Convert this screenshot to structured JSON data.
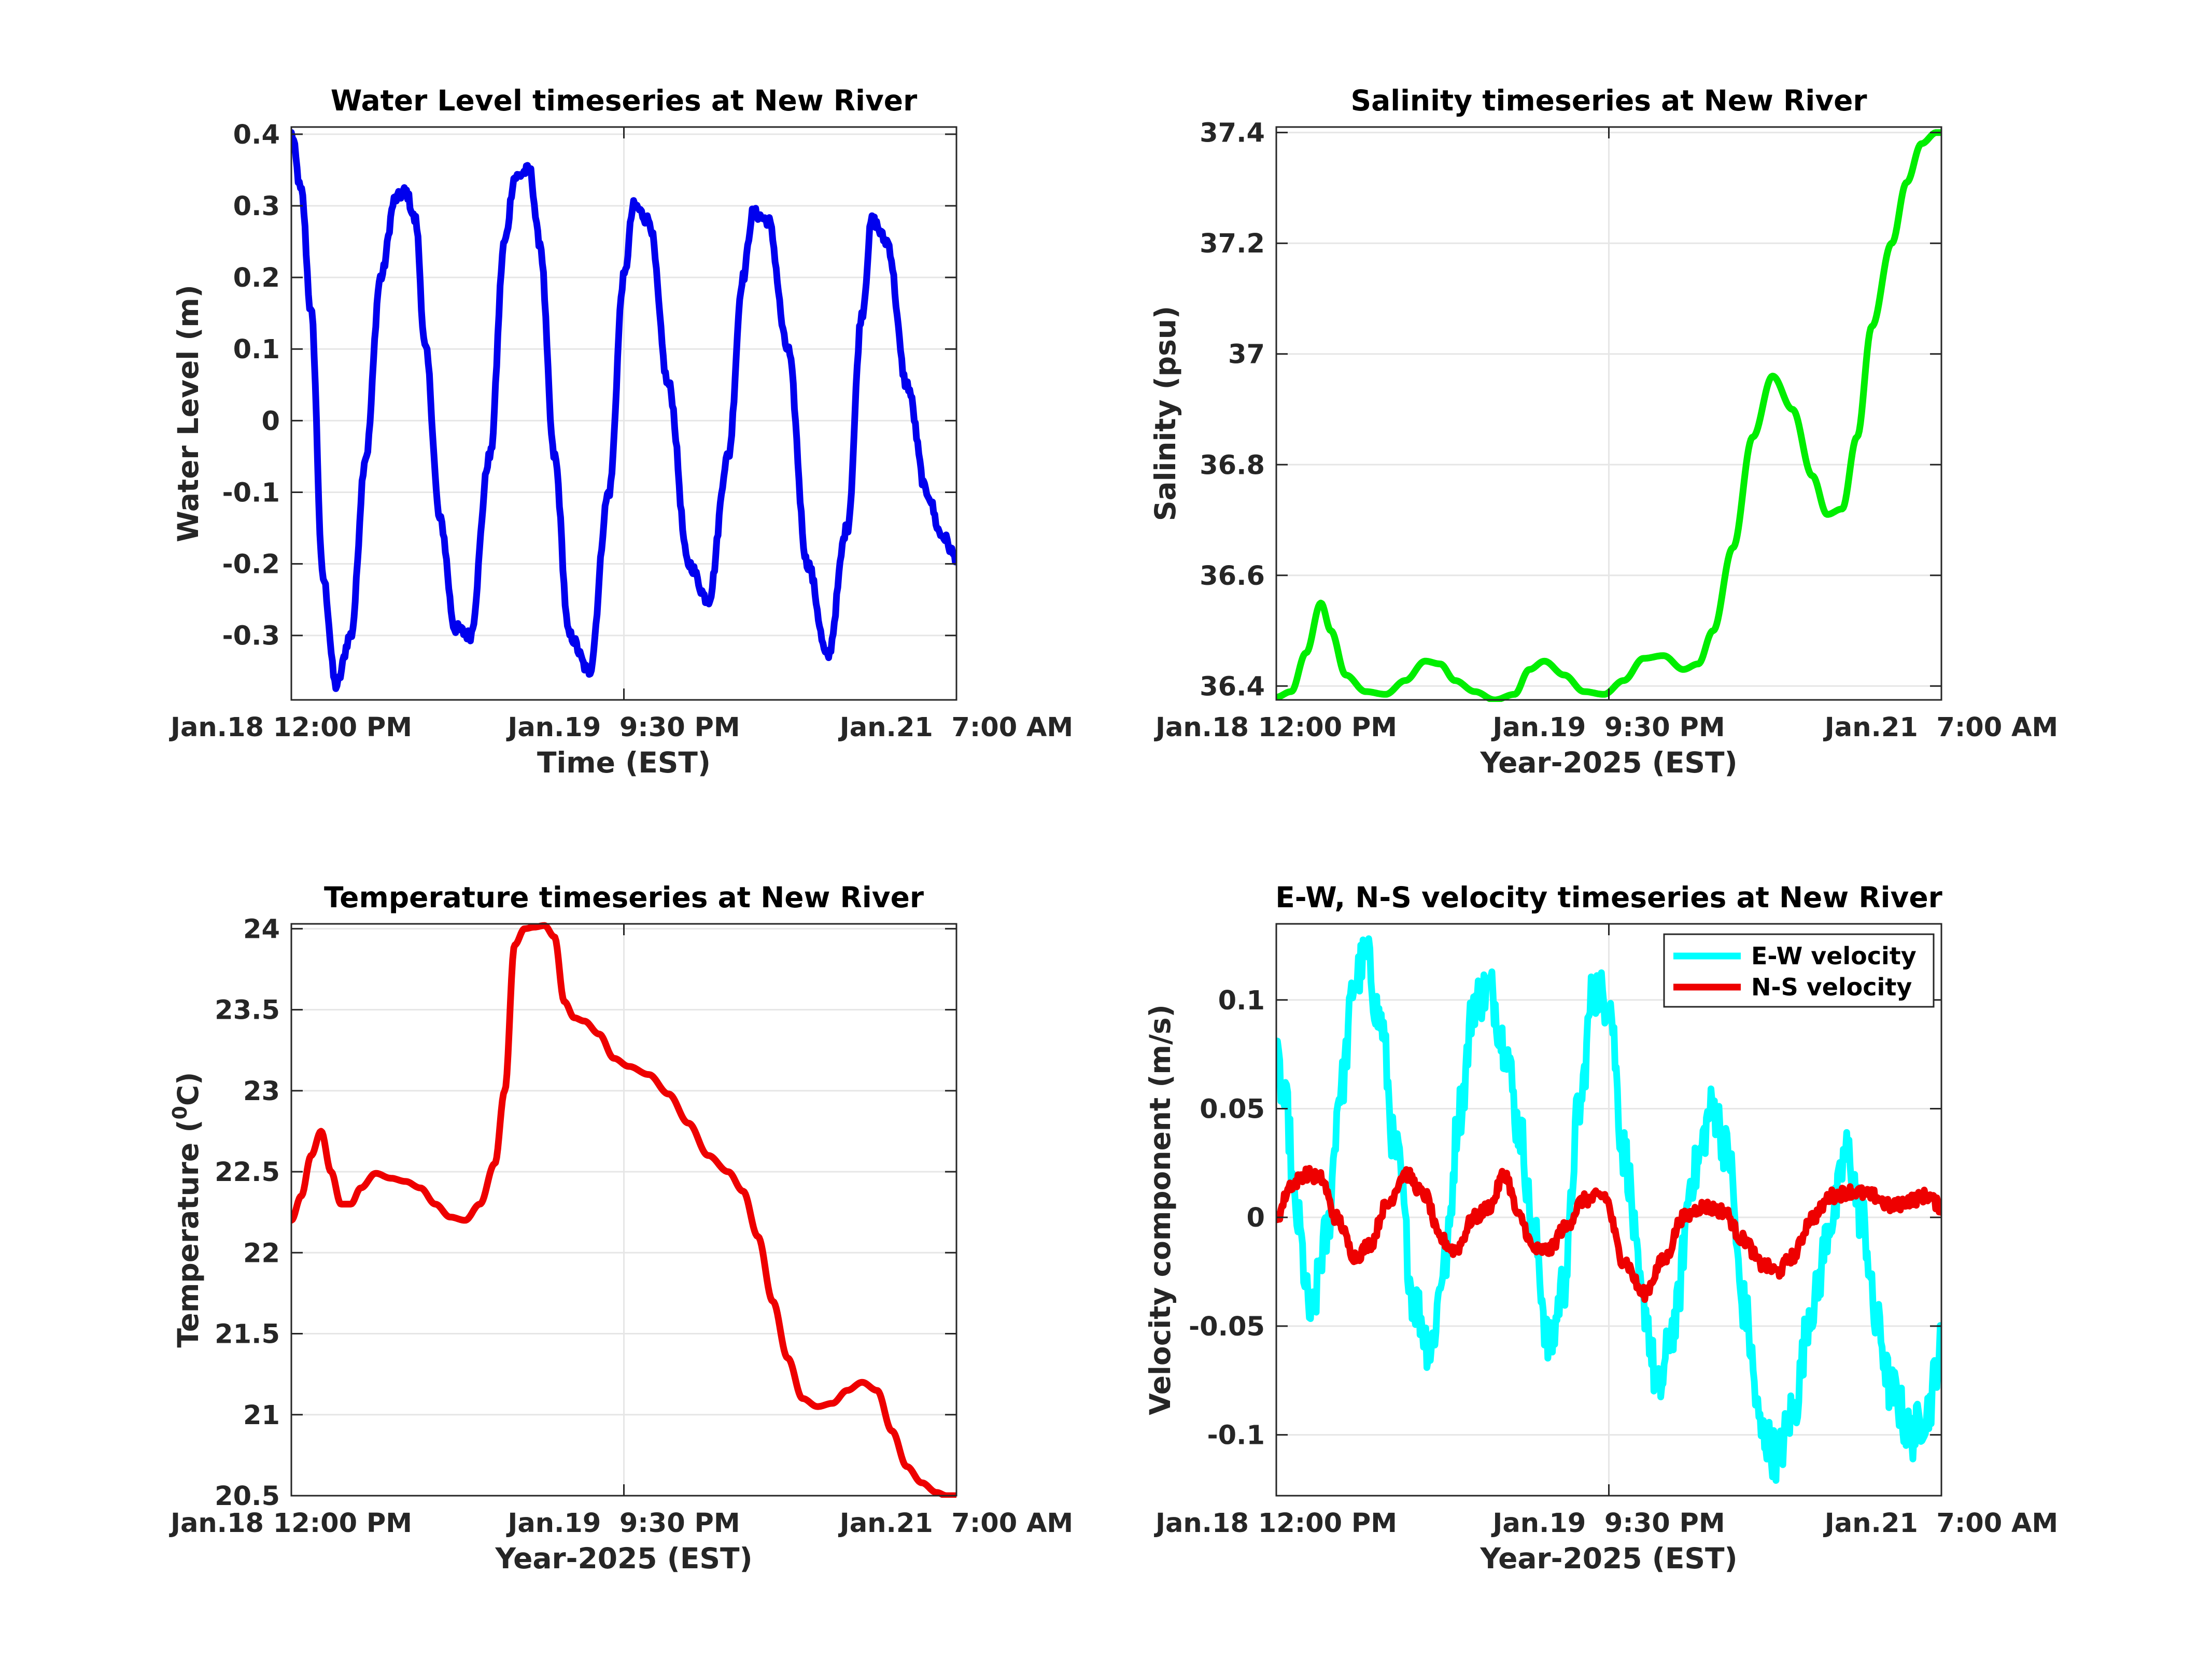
{
  "colors": {
    "water_level": "#0000ee",
    "salinity": "#00ee00",
    "temperature": "#ee0000",
    "ew_velocity": "#00ffff",
    "ns_velocity": "#ee0000",
    "grid": "#e6e6e6",
    "axis": "#262626"
  },
  "chart_data": [
    {
      "id": "water",
      "type": "line",
      "title": "Water Level timeseries at New River",
      "xlabel": "Time (EST)",
      "ylabel": "Water Level (m)",
      "x_tick_labels": [
        "Jan.18 12:00 PM",
        "Jan.19  9:30 PM",
        "Jan.21  7:00 AM"
      ],
      "xlim_hours": [
        0,
        67
      ],
      "ylim": [
        -0.39,
        0.41
      ],
      "yticks": [
        -0.3,
        -0.2,
        -0.1,
        0,
        0.1,
        0.2,
        0.3,
        0.4
      ],
      "ytick_labels": [
        "-0.3",
        "-0.2",
        "-0.1",
        "0",
        "0.1",
        "0.2",
        "0.3",
        "0.4"
      ],
      "series": [
        {
          "color_key": "water_level",
          "noise": 0.008,
          "x": [
            0,
            1,
            2,
            3.2,
            4.5,
            6,
            7.5,
            9,
            10.5,
            11.5,
            12.5,
            13.5,
            15,
            16.5,
            18,
            20,
            21.5,
            22.5,
            24,
            25,
            26.5,
            28,
            30,
            32,
            33.5,
            34.5,
            36,
            38,
            40,
            42,
            44,
            45.5,
            46.5,
            48,
            50,
            52,
            54,
            56,
            57.5,
            58.5,
            60,
            62,
            64,
            65.5,
            67
          ],
          "y": [
            0.4,
            0.32,
            0.15,
            -0.22,
            -0.37,
            -0.3,
            -0.05,
            0.2,
            0.31,
            0.32,
            0.28,
            0.1,
            -0.14,
            -0.29,
            -0.3,
            -0.05,
            0.25,
            0.34,
            0.35,
            0.25,
            -0.05,
            -0.3,
            -0.35,
            -0.1,
            0.2,
            0.3,
            0.28,
            0.05,
            -0.2,
            -0.25,
            -0.05,
            0.2,
            0.29,
            0.28,
            0.1,
            -0.2,
            -0.33,
            -0.15,
            0.15,
            0.28,
            0.25,
            0.05,
            -0.1,
            -0.16,
            -0.19
          ]
        }
      ]
    },
    {
      "id": "salinity",
      "type": "line",
      "title": "Salinity timeseries at New River",
      "xlabel": "Year-2025 (EST)",
      "ylabel": "Salinity (psu)",
      "x_tick_labels": [
        "Jan.18 12:00 PM",
        "Jan.19  9:30 PM",
        "Jan.21  7:00 AM"
      ],
      "xlim_hours": [
        0,
        67
      ],
      "ylim": [
        36.375,
        37.41
      ],
      "yticks": [
        36.4,
        36.6,
        36.8,
        37,
        37.2,
        37.4
      ],
      "ytick_labels": [
        "36.4",
        "36.6",
        "36.8",
        "37",
        "37.2",
        "37.4"
      ],
      "series": [
        {
          "color_key": "salinity",
          "noise": 0,
          "x": [
            0,
            1.5,
            3,
            4.5,
            5.5,
            7,
            9,
            11,
            13,
            15,
            16.5,
            18,
            20,
            22,
            24,
            25.5,
            27,
            29,
            31,
            33,
            35,
            37,
            39,
            41,
            42.5,
            44,
            46,
            48,
            50,
            52,
            54,
            55.5,
            57,
            58.5,
            60,
            62,
            63.5,
            65,
            66.5
          ],
          "y": [
            36.38,
            36.39,
            36.46,
            36.55,
            36.5,
            36.42,
            36.39,
            36.385,
            36.41,
            36.445,
            36.44,
            36.41,
            36.39,
            36.375,
            36.385,
            36.43,
            36.445,
            36.42,
            36.39,
            36.385,
            36.41,
            36.45,
            36.455,
            36.43,
            36.44,
            36.5,
            36.65,
            36.85,
            36.96,
            36.9,
            36.78,
            36.71,
            36.72,
            36.85,
            37.05,
            37.2,
            37.31,
            37.38,
            37.4
          ]
        }
      ]
    },
    {
      "id": "temperature",
      "type": "line",
      "title": "Temperature timeseries at New River",
      "xlabel": "Year-2025 (EST)",
      "ylabel": "Temperature (",
      "ylabel_superscript": "0",
      "ylabel_suffix": "C)",
      "x_tick_labels": [
        "Jan.18 12:00 PM",
        "Jan.19  9:30 PM",
        "Jan.21  7:00 AM"
      ],
      "xlim_hours": [
        0,
        67
      ],
      "ylim": [
        20.5,
        24.03
      ],
      "yticks": [
        20.5,
        21,
        21.5,
        22,
        22.5,
        23,
        23.5,
        24
      ],
      "ytick_labels": [
        "20.5",
        "21",
        "21.5",
        "22",
        "22.5",
        "23",
        "23.5",
        "24"
      ],
      "series": [
        {
          "color_key": "temperature",
          "noise": 0,
          "x": [
            0,
            1,
            2,
            3,
            4,
            5,
            6,
            7,
            8.5,
            10,
            11.5,
            13,
            14.5,
            16,
            17.5,
            19,
            20.5,
            21.5,
            22.5,
            23.5,
            24.5,
            25.5,
            26.5,
            27.5,
            28.5,
            29.5,
            31,
            32.5,
            34,
            36,
            38,
            40,
            42,
            44,
            45.5,
            47,
            48.5,
            50,
            51.5,
            53,
            54.5,
            56,
            57.5,
            59,
            60.5,
            62,
            63.5,
            65,
            66,
            67
          ],
          "y": [
            22.2,
            22.35,
            22.6,
            22.75,
            22.5,
            22.3,
            22.3,
            22.4,
            22.49,
            22.46,
            22.44,
            22.4,
            22.3,
            22.22,
            22.2,
            22.3,
            22.55,
            23.0,
            23.9,
            24.0,
            24.01,
            24.02,
            23.95,
            23.55,
            23.45,
            23.43,
            23.35,
            23.2,
            23.15,
            23.1,
            22.98,
            22.8,
            22.6,
            22.5,
            22.38,
            22.1,
            21.7,
            21.35,
            21.1,
            21.05,
            21.07,
            21.15,
            21.2,
            21.15,
            20.9,
            20.68,
            20.58,
            20.52,
            20.5,
            20.5
          ]
        }
      ]
    },
    {
      "id": "velocity",
      "type": "line",
      "title": "E-W, N-S velocity timeseries at New River",
      "xlabel": "Year-2025 (EST)",
      "ylabel": "Velocity component (m/s)",
      "x_tick_labels": [
        "Jan.18 12:00 PM",
        "Jan.19  9:30 PM",
        "Jan.21  7:00 AM"
      ],
      "xlim_hours": [
        0,
        67
      ],
      "ylim": [
        -0.128,
        0.135
      ],
      "yticks": [
        -0.1,
        -0.05,
        0,
        0.05,
        0.1
      ],
      "ytick_labels": [
        "-0.1",
        "-0.05",
        "0",
        "0.05",
        "0.1"
      ],
      "legend": [
        "E-W velocity",
        "N-S velocity"
      ],
      "legend_position": "top-right",
      "series": [
        {
          "name": "E-W velocity",
          "color_key": "ew_velocity",
          "noise": 0.012,
          "x": [
            0,
            1,
            2,
            3.5,
            5,
            6.5,
            8,
            9,
            10.5,
            12,
            14,
            15.5,
            17,
            18.5,
            20,
            21.5,
            23,
            24.5,
            26,
            27.5,
            29,
            30.5,
            32,
            33.5,
            35,
            37,
            38.5,
            40,
            42,
            44,
            45.5,
            47,
            49,
            50.5,
            52,
            54,
            56,
            57.5,
            59,
            60.5,
            62,
            64,
            65.5,
            67
          ],
          "y": [
            0.07,
            0.05,
            0.0,
            -0.045,
            -0.01,
            0.06,
            0.11,
            0.12,
            0.09,
            0.03,
            -0.04,
            -0.06,
            -0.02,
            0.05,
            0.1,
            0.105,
            0.08,
            0.04,
            -0.01,
            -0.06,
            -0.03,
            0.05,
            0.105,
            0.1,
            0.03,
            -0.04,
            -0.08,
            -0.05,
            0.02,
            0.05,
            0.03,
            -0.04,
            -0.1,
            -0.11,
            -0.09,
            -0.04,
            0.0,
            0.03,
            0.0,
            -0.05,
            -0.08,
            -0.1,
            -0.09,
            -0.06
          ]
        },
        {
          "name": "N-S velocity",
          "color_key": "ns_velocity",
          "noise": 0.003,
          "x": [
            0,
            1.5,
            3,
            4.5,
            6,
            8,
            9.5,
            11,
            13,
            15,
            16.5,
            18,
            20,
            21.5,
            23,
            24.5,
            26,
            27.5,
            29,
            31,
            33,
            35,
            37,
            39,
            41,
            43,
            45,
            47,
            49,
            50.5,
            52,
            54,
            56,
            58,
            60,
            62,
            64,
            65.5,
            67
          ],
          "y": [
            0.0,
            0.015,
            0.02,
            0.018,
            0.0,
            -0.018,
            -0.012,
            0.005,
            0.02,
            0.01,
            -0.01,
            -0.015,
            0.0,
            0.005,
            0.02,
            0.0,
            -0.015,
            -0.015,
            -0.005,
            0.008,
            0.01,
            -0.02,
            -0.035,
            -0.02,
            0.0,
            0.005,
            0.003,
            -0.01,
            -0.022,
            -0.025,
            -0.018,
            0.0,
            0.01,
            0.012,
            0.01,
            0.005,
            0.008,
            0.01,
            0.005
          ]
        }
      ]
    }
  ]
}
